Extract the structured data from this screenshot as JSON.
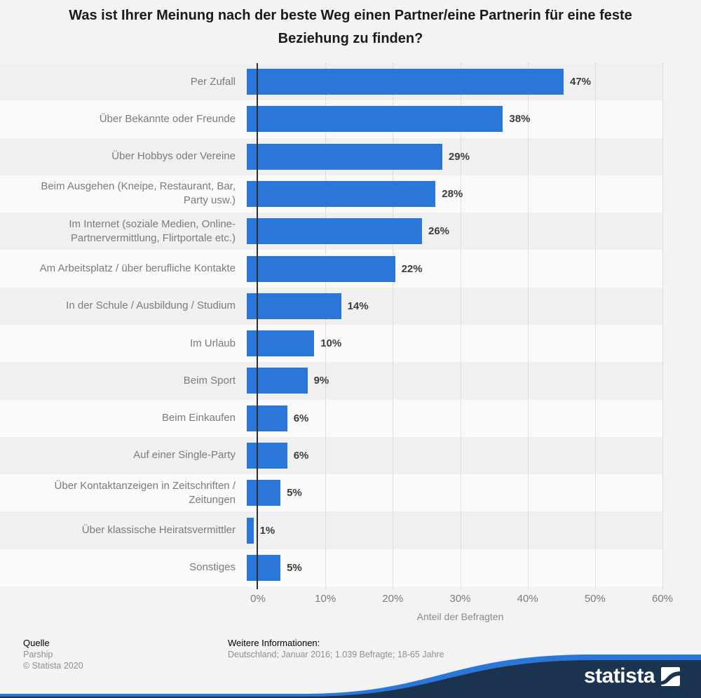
{
  "title": "Was ist Ihrer Meinung nach der beste Weg einen Partner/eine Partnerin für eine feste Beziehung zu finden?",
  "chart_data": {
    "type": "bar",
    "orientation": "horizontal",
    "categories": [
      "Per Zufall",
      "Über Bekannte oder Freunde",
      "Über Hobbys oder Vereine",
      "Beim Ausgehen (Kneipe, Restaurant, Bar,\nParty usw.)",
      "Im Internet (soziale Medien, Online-\nPartnervermittlung, Flirtportale etc.)",
      "Am Arbeitsplatz / über berufliche Kontakte",
      "In der Schule / Ausbildung / Studium",
      "Im Urlaub",
      "Beim Sport",
      "Beim Einkaufen",
      "Auf einer Single-Party",
      "Über Kontaktanzeigen in Zeitschriften /\nZeitungen",
      "Über klassische Heiratsvermittler",
      "Sonstiges"
    ],
    "values": [
      47,
      38,
      29,
      28,
      26,
      22,
      14,
      10,
      9,
      6,
      6,
      5,
      1,
      5
    ],
    "value_suffix": "%",
    "x_ticks": [
      "0%",
      "10%",
      "20%",
      "30%",
      "40%",
      "50%",
      "60%"
    ],
    "xlim": [
      0,
      60
    ],
    "xlabel": "Anteil der Befragten",
    "grid": "vertical-dotted",
    "legend": "none",
    "bar_color": "#2a76d9"
  },
  "footer": {
    "source_label": "Quelle",
    "source_name": "Parship",
    "copyright": "© Statista 2020",
    "info_label": "Weitere Informationen:",
    "info_text": "Deutschland; Januar 2016; 1.039 Befragte; 18-65 Jahre"
  },
  "branding": {
    "logo_text": "statista",
    "navy_color": "#1a334e",
    "blue_color": "#2a76d9"
  }
}
